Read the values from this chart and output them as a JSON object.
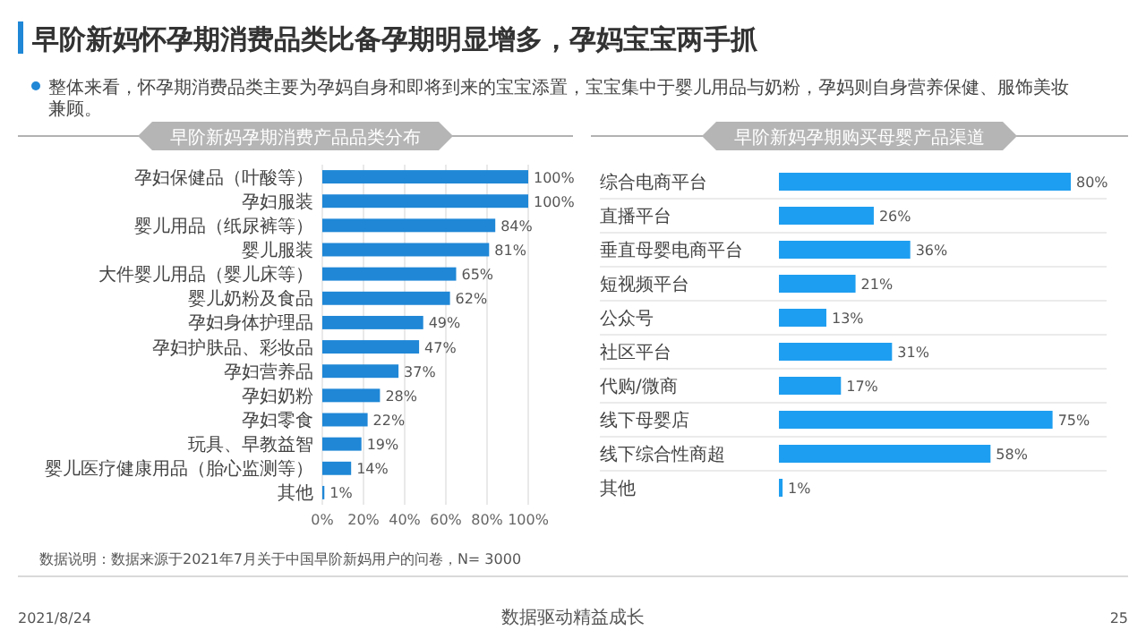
{
  "chart_data": [
    {
      "type": "bar",
      "orientation": "horizontal",
      "title": "早阶新妈孕期消费产品品类分布",
      "categories": [
        "孕妇保健品（叶酸等）",
        "孕妇服装",
        "婴儿用品（纸尿裤等）",
        "婴儿服装",
        "大件婴儿用品（婴儿床等）",
        "婴儿奶粉及食品",
        "孕妇身体护理品",
        "孕妇护肤品、彩妆品",
        "孕妇营养品",
        "孕妇奶粉",
        "孕妇零食",
        "玩具、早教益智",
        "婴儿医疗健康用品（胎心监测等）",
        "其他"
      ],
      "values": [
        100,
        100,
        84,
        81,
        65,
        62,
        49,
        47,
        37,
        28,
        22,
        19,
        14,
        1
      ],
      "value_labels": [
        "100%",
        "100%",
        "84%",
        "81%",
        "65%",
        "62%",
        "49%",
        "47%",
        "37%",
        "28%",
        "22%",
        "19%",
        "14%",
        "1%"
      ],
      "color": "#1f87d6",
      "xlim": [
        0,
        100
      ],
      "xticks": [
        {
          "value": 0,
          "label": "0%"
        },
        {
          "value": 20,
          "label": "20%"
        },
        {
          "value": 40,
          "label": "40%"
        },
        {
          "value": 60,
          "label": "60%"
        },
        {
          "value": 80,
          "label": "80%"
        },
        {
          "value": 100,
          "label": "100%"
        }
      ],
      "grid": "x",
      "annotations": [
        "早阶新妈怀孕期消费品类比备孕期明显增多，孕妈宝宝两手抓",
        "整体来看，怀孕期消费品类主要为孕妈自身和即将到来的宝宝添置，宝宝集中于婴儿用品与奶粉，孕妈则自身营养保健、服饰美妆兼顾。",
        "数据说明：数据来源于2021年7月关于中国早阶新妈用户的问卷，N= 3000",
        "2021/8/24",
        "数据驱动精益成长",
        "25"
      ]
    },
    {
      "type": "bar",
      "orientation": "horizontal",
      "title": "早阶新妈孕期购买母婴产品渠道",
      "categories": [
        "综合电商平台",
        "直播平台",
        "垂直母婴电商平台",
        "短视频平台",
        "公众号",
        "社区平台",
        "代购/微商",
        "线下母婴店",
        "线下综合性商超",
        "其他"
      ],
      "values": [
        80,
        26,
        36,
        21,
        13,
        31,
        17,
        75,
        58,
        1
      ],
      "value_labels": [
        "80%",
        "26%",
        "36%",
        "21%",
        "13%",
        "31%",
        "17%",
        "75%",
        "58%",
        "1%"
      ],
      "color": "#1e9ef0",
      "grid": true
    }
  ]
}
